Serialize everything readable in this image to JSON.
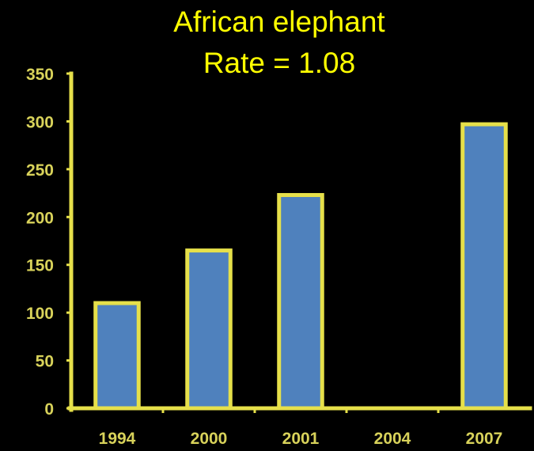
{
  "colors": {
    "background": "#000000",
    "text": "#ffff00",
    "axis": "#e6e04a",
    "bar_fill": "#4f81bd",
    "bar_outline": "#e6e04a",
    "tick_label": "#d8d25a"
  },
  "chart_data": {
    "type": "bar",
    "title": "African elephant",
    "subtitle": "Rate =  1.08",
    "xlabel": "",
    "ylabel": "",
    "categories": [
      "1994",
      "2000",
      "2001",
      "2004",
      "2007"
    ],
    "values": [
      110,
      165,
      223,
      null,
      297
    ],
    "ylim": [
      0,
      350
    ],
    "yticks": [
      0,
      50,
      100,
      150,
      200,
      250,
      300,
      350
    ],
    "ytick_labels": [
      "0",
      "50",
      "100",
      "150",
      "200",
      "250",
      "300",
      "350"
    ],
    "grid": false,
    "legend": "none"
  }
}
